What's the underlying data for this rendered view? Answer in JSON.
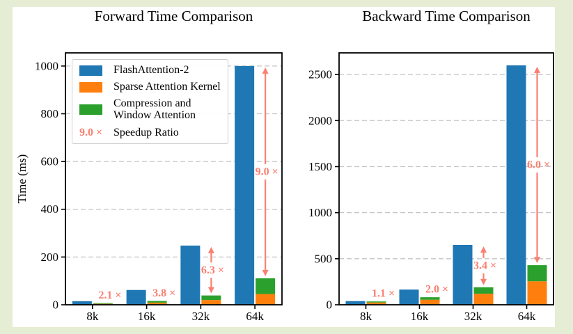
{
  "page": {
    "background": "#e5edd5",
    "figure_background": "#ffffff"
  },
  "palette": {
    "flash_blue": "#1f77b4",
    "sparse_orange": "#ff7f0e",
    "compress_green": "#2ca02c",
    "speedup_salmon": "#fa8072",
    "grid_gray": "#c4c4c4",
    "axis_black": "#000000",
    "legend_border": "#cccccc"
  },
  "chart_data": [
    {
      "type": "bar",
      "title": "Forward Time Comparison",
      "ylabel": "Time (ms)",
      "categories": [
        "8k",
        "16k",
        "32k",
        "64k"
      ],
      "ylim": [
        0,
        1055
      ],
      "yticks": [
        0,
        200,
        400,
        600,
        800,
        1000
      ],
      "grid": "horizontal-dashed",
      "legend_position": "upper left",
      "series": [
        {
          "name": "FlashAttention-2",
          "role": "baseline-bar",
          "color": "flash_blue",
          "values": [
            15,
            62,
            248,
            1000
          ]
        },
        {
          "name": "Sparse Attention Kernel",
          "role": "stack-bottom",
          "color": "sparse_orange",
          "values": [
            4,
            9,
            20,
            45
          ]
        },
        {
          "name": "Compression and Window Attention",
          "role": "stack-top",
          "color": "compress_green",
          "legend_lines": [
            "Compression and",
            "Window Attention"
          ],
          "values": [
            3,
            7,
            19,
            66
          ]
        }
      ],
      "speedup_annotations": [
        {
          "category": "8k",
          "label": "2.1 ×",
          "style": "text"
        },
        {
          "category": "16k",
          "label": "3.8 ×",
          "style": "text"
        },
        {
          "category": "32k",
          "label": "6.3 ×",
          "style": "arrow"
        },
        {
          "category": "64k",
          "label": "9.0 ×",
          "style": "arrow"
        }
      ],
      "legend_extra_item": {
        "symbol_text": "9.0 ×",
        "label": "Speedup Ratio"
      }
    },
    {
      "type": "bar",
      "title": "Backward Time Comparison",
      "ylabel": "",
      "categories": [
        "8k",
        "16k",
        "32k",
        "64k"
      ],
      "ylim": [
        0,
        2735
      ],
      "yticks": [
        0,
        500,
        1000,
        1500,
        2000,
        2500
      ],
      "grid": "horizontal-dashed",
      "legend_position": "none",
      "series": [
        {
          "name": "FlashAttention-2",
          "role": "baseline-bar",
          "color": "flash_blue",
          "values": [
            40,
            165,
            650,
            2600
          ]
        },
        {
          "name": "Sparse Attention Kernel",
          "role": "stack-bottom",
          "color": "sparse_orange",
          "values": [
            25,
            55,
            120,
            255
          ]
        },
        {
          "name": "Compression and Window Attention",
          "role": "stack-top",
          "color": "compress_green",
          "values": [
            11,
            27,
            70,
            175
          ]
        }
      ],
      "speedup_annotations": [
        {
          "category": "8k",
          "label": "1.1 ×",
          "style": "text"
        },
        {
          "category": "16k",
          "label": "2.0 ×",
          "style": "text"
        },
        {
          "category": "32k",
          "label": "3.4 ×",
          "style": "arrow"
        },
        {
          "category": "64k",
          "label": "6.0 ×",
          "style": "arrow"
        }
      ]
    }
  ]
}
